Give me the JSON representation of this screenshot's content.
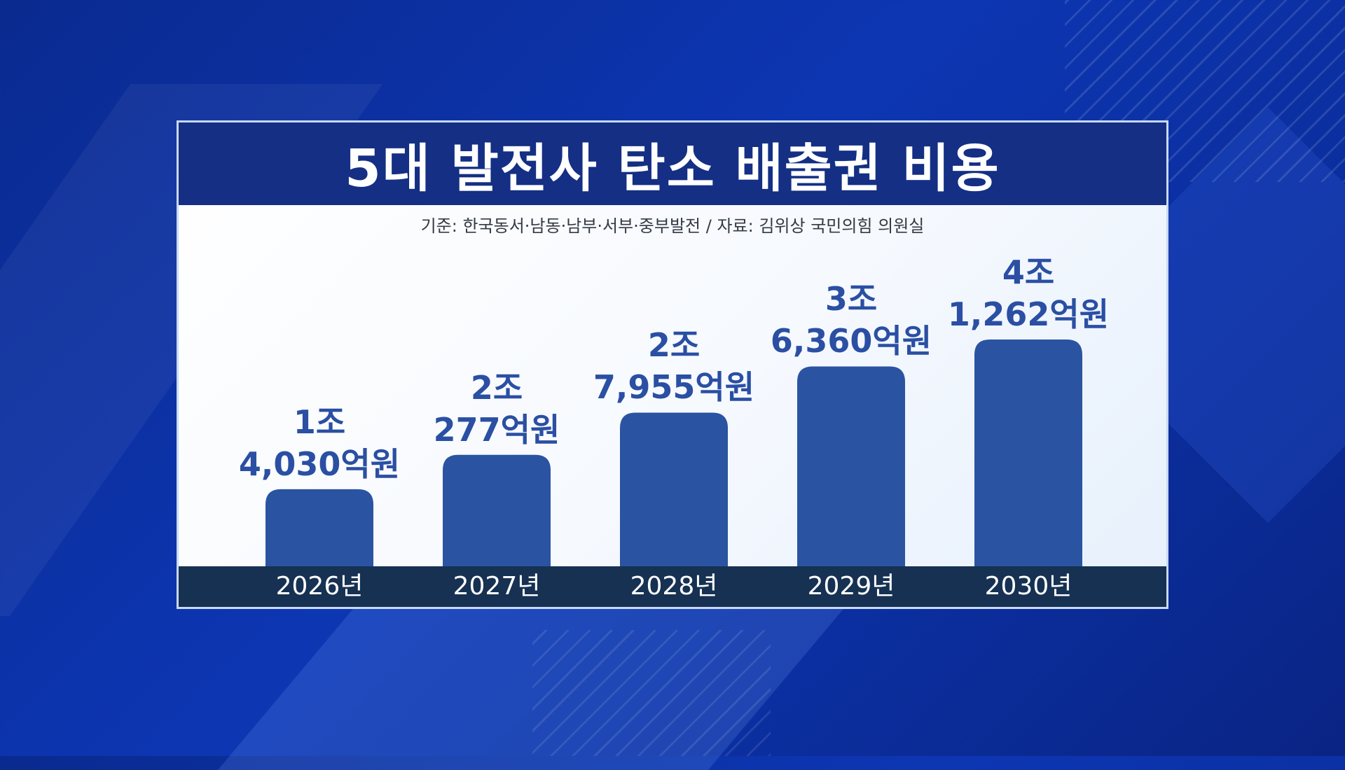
{
  "chart_data": {
    "type": "bar",
    "title": "5대 발전사 탄소 배출권 비용",
    "subtitle": "기준: 한국동서·남동·남부·서부·중부발전 / 자료: 김위상 국민의힘 의원실",
    "categories": [
      "2026년",
      "2027년",
      "2028년",
      "2029년",
      "2030년"
    ],
    "values": [
      14030,
      20277,
      27955,
      36360,
      41262
    ],
    "value_unit": "억원",
    "data_labels": [
      [
        "1조",
        "4,030억원"
      ],
      [
        "2조",
        "277억원"
      ],
      [
        "2조",
        "7,955억원"
      ],
      [
        "3조",
        "6,360억원"
      ],
      [
        "4조",
        "1,262억원"
      ]
    ],
    "bar_color": "#2a54a1",
    "label_color": "#2a4fa3",
    "grid": false,
    "legend": "none"
  }
}
